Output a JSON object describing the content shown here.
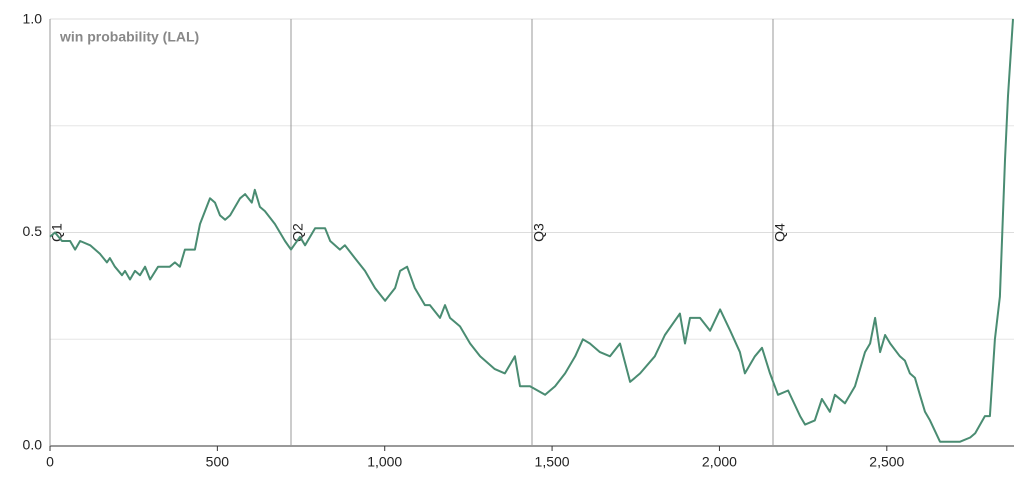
{
  "chart_data": {
    "type": "line",
    "y_label": "win probability (LAL)",
    "x": [
      0,
      15,
      36,
      60,
      75,
      90,
      120,
      149,
      170,
      179,
      194,
      215,
      224,
      239,
      254,
      269,
      284,
      299,
      323,
      358,
      373,
      388,
      403,
      433,
      448,
      463,
      478,
      493,
      508,
      523,
      538,
      568,
      583,
      603,
      612,
      627,
      642,
      672,
      702,
      720,
      747,
      762,
      792,
      822,
      837,
      866,
      881,
      911,
      941,
      971,
      1001,
      1031,
      1046,
      1067,
      1090,
      1105,
      1120,
      1135,
      1165,
      1180,
      1195,
      1225,
      1255,
      1285,
      1329,
      1359,
      1389,
      1404,
      1434,
      1479,
      1509,
      1539,
      1569,
      1592,
      1613,
      1643,
      1673,
      1703,
      1733,
      1763,
      1807,
      1837,
      1882,
      1897,
      1912,
      1942,
      1972,
      2002,
      2032,
      2061,
      2076,
      2106,
      2127,
      2151,
      2175,
      2205,
      2241,
      2256,
      2285,
      2306,
      2330,
      2345,
      2375,
      2405,
      2435,
      2450,
      2465,
      2480,
      2495,
      2510,
      2539,
      2554,
      2569,
      2584,
      2599,
      2614,
      2629,
      2659,
      2719,
      2749,
      2764,
      2793,
      2808,
      2823,
      2838,
      2853,
      2862,
      2877
    ],
    "series": [
      {
        "name": "LAL",
        "color": "#4a8c72",
        "values": [
          0.49,
          0.5,
          0.48,
          0.48,
          0.46,
          0.48,
          0.47,
          0.45,
          0.43,
          0.44,
          0.42,
          0.4,
          0.41,
          0.39,
          0.41,
          0.4,
          0.42,
          0.39,
          0.42,
          0.42,
          0.43,
          0.42,
          0.46,
          0.46,
          0.52,
          0.55,
          0.58,
          0.57,
          0.54,
          0.53,
          0.54,
          0.58,
          0.59,
          0.57,
          0.6,
          0.56,
          0.55,
          0.52,
          0.48,
          0.46,
          0.49,
          0.47,
          0.51,
          0.51,
          0.48,
          0.46,
          0.47,
          0.44,
          0.41,
          0.37,
          0.34,
          0.37,
          0.41,
          0.42,
          0.37,
          0.35,
          0.33,
          0.33,
          0.3,
          0.33,
          0.3,
          0.28,
          0.24,
          0.21,
          0.18,
          0.17,
          0.21,
          0.14,
          0.14,
          0.12,
          0.14,
          0.17,
          0.21,
          0.25,
          0.24,
          0.22,
          0.21,
          0.24,
          0.15,
          0.17,
          0.21,
          0.26,
          0.31,
          0.24,
          0.3,
          0.3,
          0.27,
          0.32,
          0.27,
          0.22,
          0.17,
          0.21,
          0.23,
          0.17,
          0.12,
          0.13,
          0.07,
          0.05,
          0.06,
          0.11,
          0.08,
          0.12,
          0.1,
          0.14,
          0.22,
          0.24,
          0.3,
          0.22,
          0.26,
          0.24,
          0.21,
          0.2,
          0.17,
          0.16,
          0.12,
          0.08,
          0.06,
          0.01,
          0.01,
          0.02,
          0.03,
          0.07,
          0.07,
          0.25,
          0.35,
          0.67,
          0.82,
          1.0
        ]
      }
    ],
    "xlim": [
      0,
      2880
    ],
    "ylim": [
      0,
      1
    ],
    "xticks": [
      0,
      500,
      {
        "value": 1000,
        "label": "1,000"
      },
      {
        "value": 1500,
        "label": "1,500"
      },
      {
        "value": 2000,
        "label": "2,000"
      },
      {
        "value": 2500,
        "label": "2,500"
      }
    ],
    "yticks": [
      {
        "value": 0,
        "label": "0.0"
      },
      0.5,
      {
        "value": 1,
        "label": "1.0"
      }
    ],
    "minor_yticks": [
      0.25,
      0.75
    ],
    "quarters": [
      {
        "x": 0,
        "label": "Q1"
      },
      {
        "x": 720,
        "label": "Q2"
      },
      {
        "x": 1440,
        "label": "Q3"
      },
      {
        "x": 2160,
        "label": "Q4"
      }
    ],
    "grid": true
  }
}
